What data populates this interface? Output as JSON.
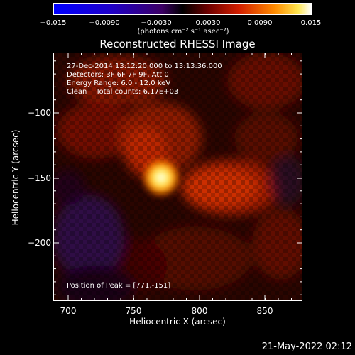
{
  "colorbar": {
    "ticks": [
      "−0.015",
      "−0.0090",
      "−0.0030",
      "0.0030",
      "0.0090",
      "0.015"
    ],
    "units": "(photons cm⁻² s⁻¹ asec⁻²)"
  },
  "title": "Reconstructed RHESSI Image",
  "annotation": {
    "line1": "27-Dec-2014 13:12:20.000 to 13:13:36.000",
    "line2": "Detectors: 3F 6F 7F 9F, Att 0",
    "line3": "Energy Range: 6.0 - 12.0 keV",
    "line4": "Clean    Total counts: 6.17E+03",
    "peak": "Position of Peak = [771,-151]"
  },
  "axes": {
    "xlabel": "Heliocentric X (arcsec)",
    "ylabel": "Heliocentric Y (arcsec)",
    "xticks": [
      "700",
      "750",
      "800",
      "850"
    ],
    "yticks": [
      "−100",
      "−150",
      "−200"
    ]
  },
  "datestamp": "21-May-2022 02:12",
  "colors": {
    "background": "#000000",
    "text": "#ffffff"
  }
}
